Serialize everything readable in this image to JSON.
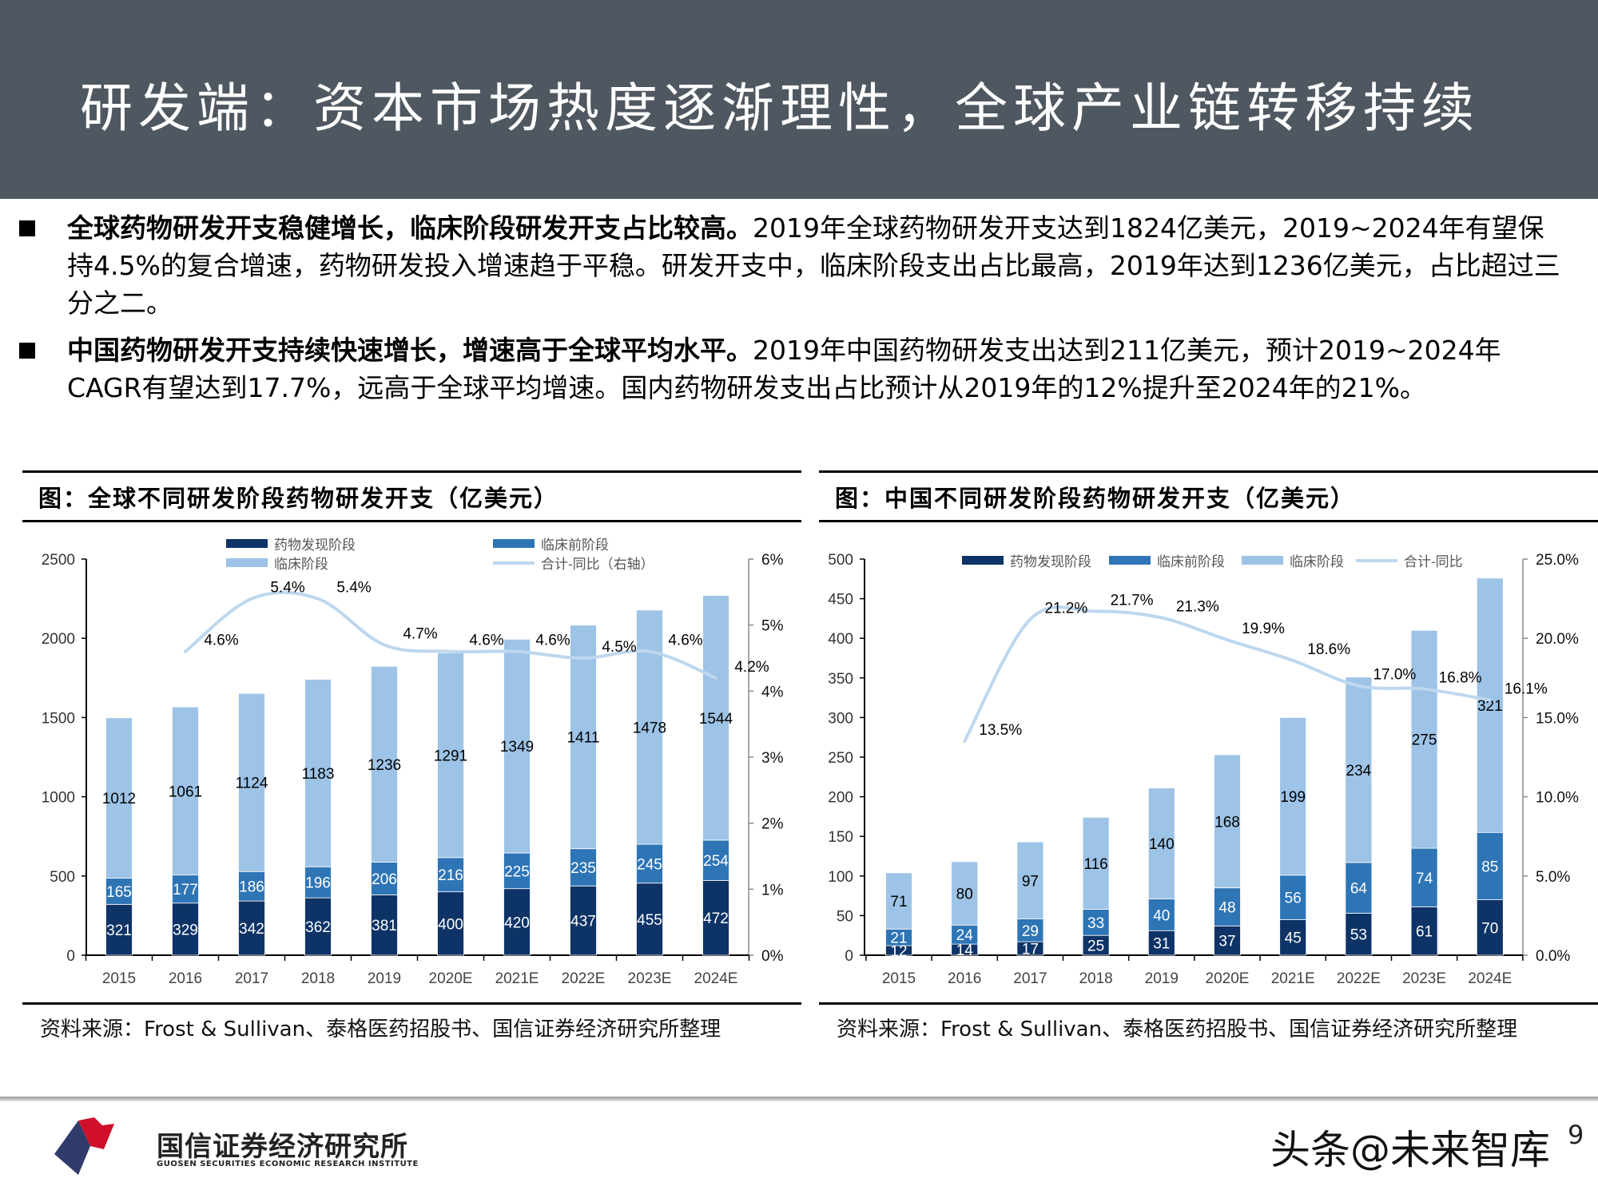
{
  "header": {
    "title": "研发端：资本市场热度逐渐理性，全球产业链转移持续"
  },
  "bullets": [
    {
      "bold": "全球药物研发开支稳健增长，临床阶段研发开支占比较高。",
      "text": "2019年全球药物研发开支达到1824亿美元，2019~2024年有望保持4.5%的复合增速，药物研发投入增速趋于平稳。研发开支中，临床阶段支出占比最高，2019年达到1236亿美元，占比超过三分之二。"
    },
    {
      "bold": "中国药物研发开支持续快速增长，增速高于全球平均水平。",
      "text": "2019年中国药物研发支出达到211亿美元，预计2019~2024年CAGR有望达到17.7%，远高于全球平均增速。国内药物研发支出占比预计从2019年的12%提升至2024年的21%。"
    }
  ],
  "panels": [
    {
      "title": "图：全球不同研发阶段药物研发开支（亿美元）",
      "source": "资料来源：Frost & Sullivan、泰格医药招股书、国信证券经济研究所整理"
    },
    {
      "title": "图：中国不同研发阶段药物研发开支（亿美元）",
      "source": "资料来源：Frost & Sullivan、泰格医药招股书、国信证券经济研究所整理"
    }
  ],
  "colors": {
    "discovery": "#0e3366",
    "preclinical": "#2e75b6",
    "clinical": "#9dc3e6",
    "yoy_line": "#bdd7ee",
    "header_bg": "#4f5861"
  },
  "chart_data": [
    {
      "type": "bar",
      "stacked": true,
      "categories": [
        "2015",
        "2016",
        "2017",
        "2018",
        "2019",
        "2020E",
        "2021E",
        "2022E",
        "2023E",
        "2024E"
      ],
      "series": [
        {
          "name": "药物发现阶段",
          "values": [
            321,
            329,
            342,
            362,
            381,
            400,
            420,
            437,
            455,
            472
          ]
        },
        {
          "name": "临床前阶段",
          "values": [
            165,
            177,
            186,
            196,
            206,
            216,
            225,
            235,
            245,
            254
          ]
        },
        {
          "name": "临床阶段",
          "values": [
            1012,
            1061,
            1124,
            1183,
            1236,
            1291,
            1349,
            1411,
            1478,
            1544
          ]
        }
      ],
      "line": {
        "name": "合计-同比（右轴）",
        "axis": "right",
        "values": [
          null,
          4.6,
          5.4,
          5.4,
          4.7,
          4.6,
          4.6,
          4.5,
          4.6,
          4.2
        ],
        "labels": [
          "",
          "4.6%",
          "5.4%",
          "5.4%",
          "4.7%",
          "4.6%",
          "4.6%",
          "4.5%",
          "4.6%",
          "4.2%"
        ]
      },
      "ylim": [
        0,
        2500
      ],
      "yticks": [
        "0",
        "500",
        "1000",
        "1500",
        "2000",
        "2500"
      ],
      "y2lim": [
        0,
        6
      ],
      "y2ticks": [
        "0%",
        "1%",
        "2%",
        "3%",
        "4%",
        "5%",
        "6%"
      ],
      "legend": "top",
      "grid": false
    },
    {
      "type": "bar",
      "stacked": true,
      "categories": [
        "2015",
        "2016",
        "2017",
        "2018",
        "2019",
        "2020E",
        "2021E",
        "2022E",
        "2023E",
        "2024E"
      ],
      "series": [
        {
          "name": "药物发现阶段",
          "values": [
            12,
            14,
            17,
            25,
            31,
            37,
            45,
            53,
            61,
            70
          ]
        },
        {
          "name": "临床前阶段",
          "values": [
            21,
            24,
            29,
            33,
            40,
            48,
            56,
            64,
            74,
            85
          ]
        },
        {
          "name": "临床阶段",
          "values": [
            71,
            80,
            97,
            116,
            140,
            168,
            199,
            234,
            275,
            321
          ]
        }
      ],
      "line": {
        "name": "合计-同比",
        "axis": "right",
        "values": [
          null,
          13.5,
          21.2,
          21.7,
          21.3,
          19.9,
          18.6,
          17.0,
          16.8,
          16.1
        ],
        "labels": [
          "",
          "13.5%",
          "21.2%",
          "21.7%",
          "21.3%",
          "19.9%",
          "18.6%",
          "17.0%",
          "16.8%",
          "16.1%"
        ]
      },
      "ylim": [
        0,
        500
      ],
      "yticks": [
        "0",
        "50",
        "100",
        "150",
        "200",
        "250",
        "300",
        "350",
        "400",
        "450",
        "500"
      ],
      "y2lim": [
        0,
        25
      ],
      "y2ticks": [
        "0.0%",
        "5.0%",
        "10.0%",
        "15.0%",
        "20.0%",
        "25.0%"
      ],
      "legend": "top",
      "grid": false
    }
  ],
  "footer": {
    "logo_cn": "国信证券经济研究所",
    "logo_en": "GUOSEN SECURITIES ECONOMIC RESEARCH INSTITUTE",
    "watermark": "头条@未来智库",
    "page": "9"
  }
}
